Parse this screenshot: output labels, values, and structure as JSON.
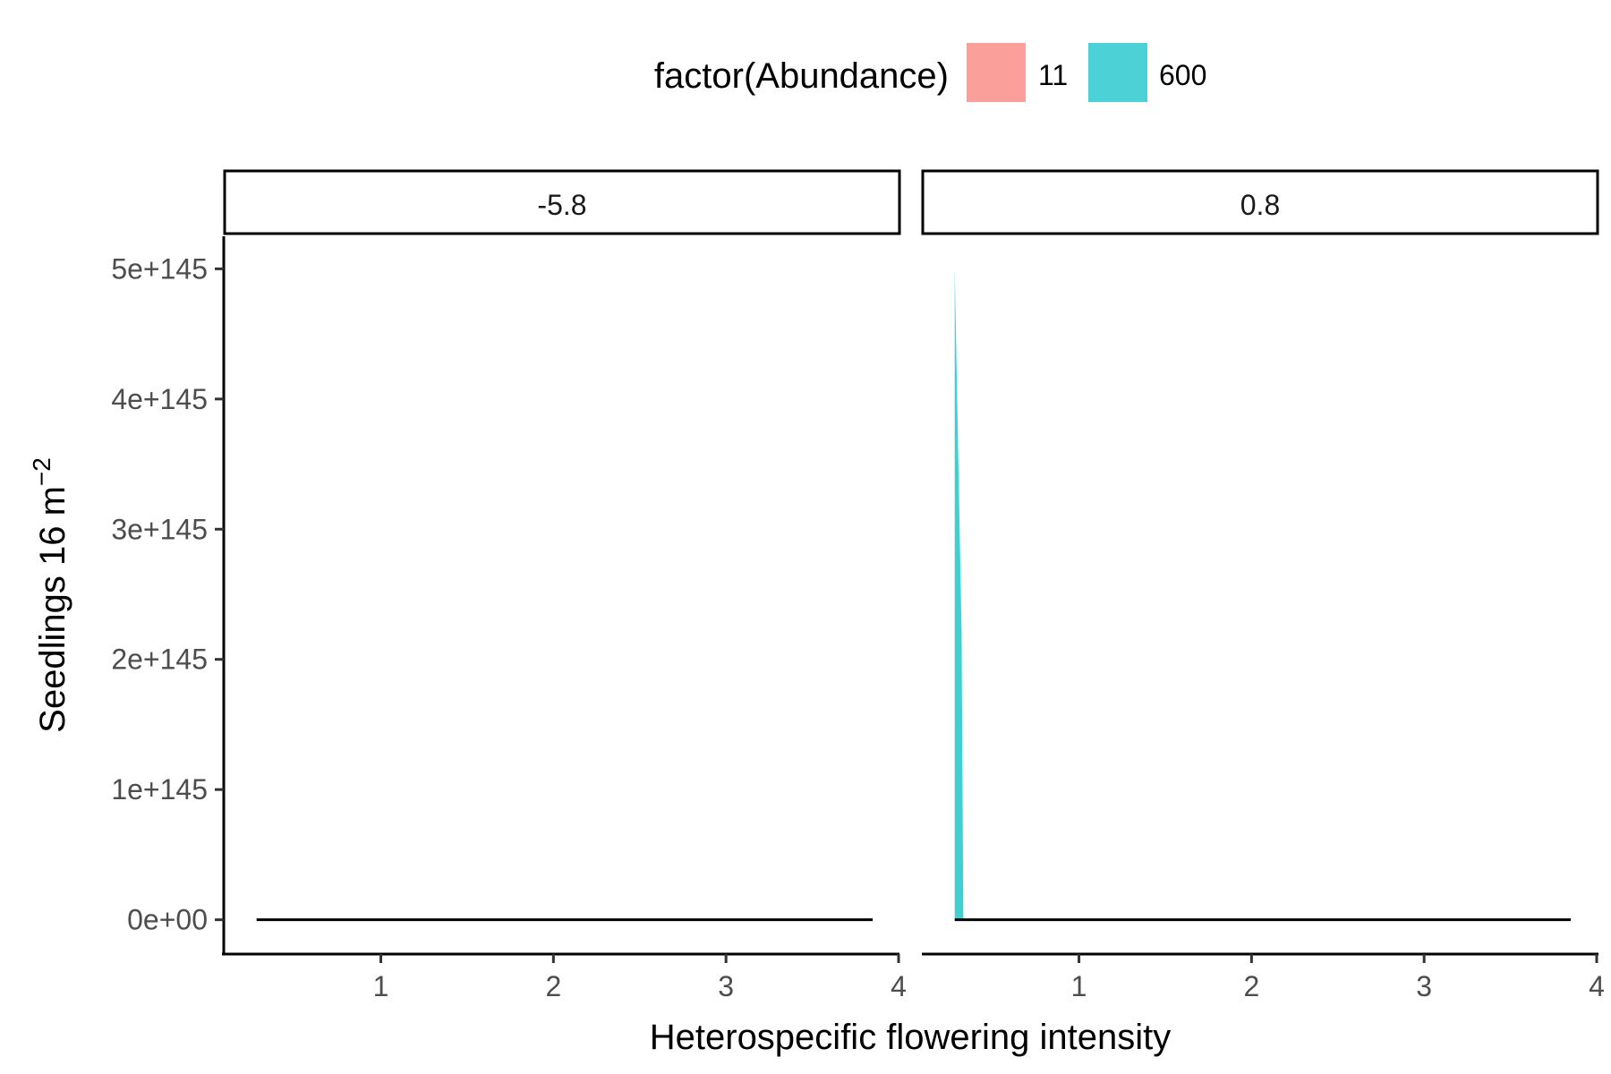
{
  "chart_data": {
    "type": "area",
    "facet_variable_values": [
      "-5.8",
      "0.8"
    ],
    "legend": {
      "title": "factor(Abundance)",
      "placement": "top",
      "items": [
        {
          "label": "11",
          "color": "#F8766D"
        },
        {
          "label": "600",
          "color": "#00BFC4"
        }
      ]
    },
    "xlabel": "Heterospecific flowering intensity",
    "ylabel_main": "Seedlings 16 m",
    "ylabel_sup": "−2",
    "xlim": [
      0.1,
      4.0
    ],
    "ylim": [
      -2.5e+144,
      5.25e+145
    ],
    "x_ticks": [
      1,
      2,
      3,
      4
    ],
    "x_tick_labels": [
      "1",
      "2",
      "3",
      "4"
    ],
    "y_ticks": [
      0,
      1e+145,
      2e+145,
      3e+145,
      4e+145,
      5e+145
    ],
    "y_tick_labels": [
      "0e+00",
      "1e+145",
      "2e+145",
      "3e+145",
      "4e+145",
      "5e+145"
    ],
    "grid": false,
    "panels": [
      {
        "strip": "-5.8",
        "line": {
          "x": [
            0.28,
            3.85
          ],
          "y": [
            0,
            0
          ]
        },
        "area": null
      },
      {
        "strip": "0.8",
        "line": {
          "x": [
            0.28,
            3.85
          ],
          "y": [
            0,
            0
          ]
        },
        "area": {
          "series": "600",
          "color": "#00BFC4",
          "x": [
            0.28,
            0.29,
            0.3,
            0.31,
            0.32,
            0.33
          ],
          "y": [
            5e+145,
            4.3e+145,
            3.6e+145,
            2.9e+145,
            2.2e+145,
            0
          ]
        }
      }
    ]
  }
}
